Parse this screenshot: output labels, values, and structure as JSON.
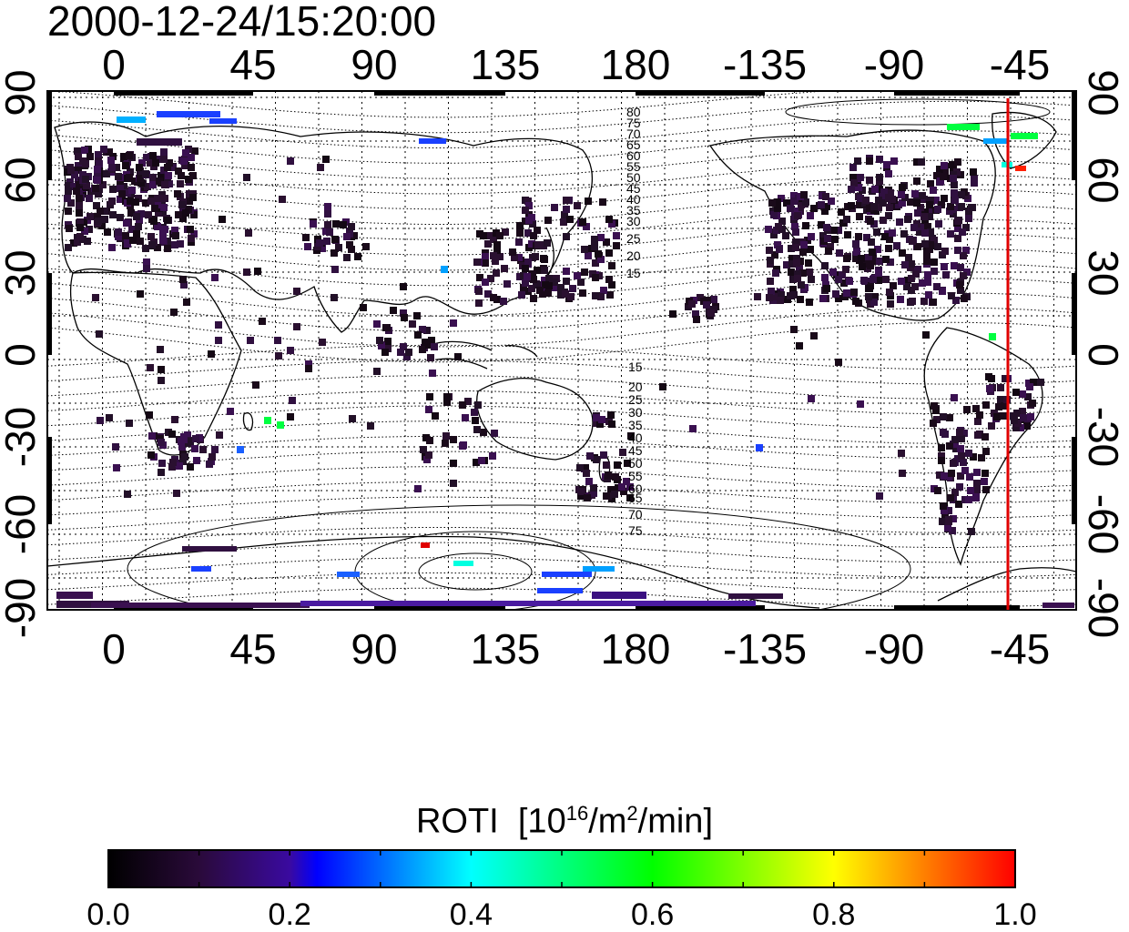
{
  "timestamp": "2000-12-24/15:20:00",
  "axes": {
    "lon_ticks": [
      "0",
      "45",
      "90",
      "135",
      "180",
      "-135",
      "-90",
      "-45"
    ],
    "lat_ticks": [
      "90",
      "60",
      "30",
      "0",
      "-30",
      "-60",
      "-90"
    ]
  },
  "contours": {
    "north_labels": [
      "80",
      "75",
      "70",
      "65",
      "60",
      "55",
      "50",
      "45",
      "40",
      "35",
      "30",
      "25",
      "20",
      "15"
    ],
    "south_labels": [
      "15",
      "20",
      "25",
      "30",
      "35",
      "40",
      "45",
      "50",
      "55",
      "60",
      "65",
      "70",
      "75"
    ]
  },
  "marker": {
    "longitude": -50,
    "color": "#e00000"
  },
  "colorbar": {
    "title": "ROTI",
    "unit_base": "[10",
    "unit_exp": "16",
    "unit_mid": "/m",
    "unit_exp2": "2",
    "unit_tail": "/min]",
    "ticks": [
      "0.0",
      "0.2",
      "0.4",
      "0.6",
      "0.8",
      "1.0"
    ],
    "range": [
      0.0,
      1.0
    ],
    "colors": [
      "#000000",
      "#2a0a3a",
      "#4a1a8a",
      "#1a1aff",
      "#00a0ff",
      "#00ffe0",
      "#00ff40",
      "#a0ff00",
      "#ffff00",
      "#ffa000",
      "#ff0000"
    ]
  }
}
